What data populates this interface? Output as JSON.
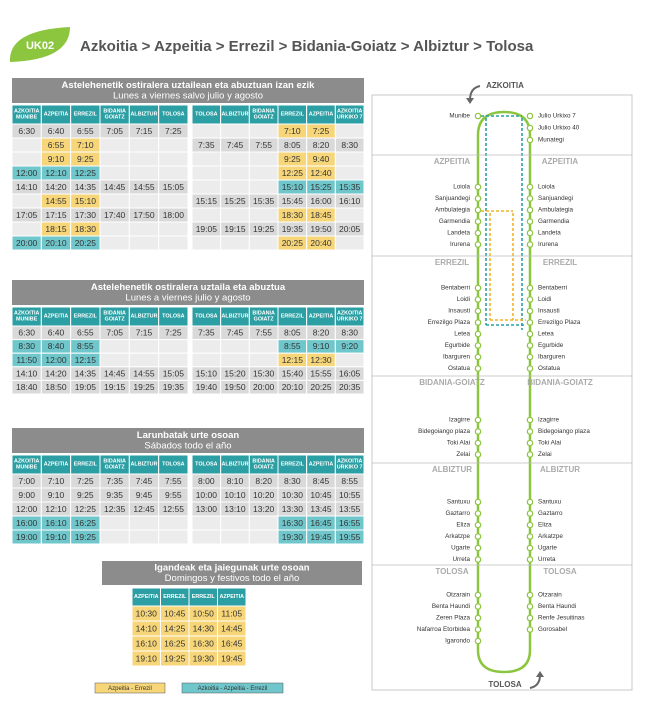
{
  "header": {
    "code": "UK02",
    "title": "Azkoitia > Azpeitia > Errezil > Bidania-Goiatz > Albiztur > Tolosa"
  },
  "colors": {
    "yellow": "#f7d679",
    "teal": "#6fc7cc",
    "header": "#2b9fa3",
    "bar": "#8c8c8c",
    "row": "#d9d9d9",
    "empty": "#ececec",
    "route": "#8cc63f"
  },
  "timetables": [
    {
      "title": "Astelehenetik ostiralera uztailean eta abuztuan izan ezik",
      "subtitle": "Lunes a viernes salvo julio y agosto",
      "left": {
        "headers": [
          [
            "AZKOITIA",
            "MUNIBE"
          ],
          [
            "AZPEITIA"
          ],
          [
            "ERREZIL"
          ],
          [
            "BIDANIA",
            "GOIATZ"
          ],
          [
            "ALBIZTUR"
          ],
          [
            "TOLOSA"
          ]
        ],
        "rows": [
          [
            "6:30",
            "6:40",
            "6:55",
            "7:05",
            "7:15",
            "7:25"
          ],
          [
            null,
            "6:55",
            "7:10",
            null,
            null,
            null
          ],
          [
            null,
            "9:10",
            "9:25",
            null,
            null,
            null
          ],
          [
            "12:00",
            "12:10",
            "12:25",
            null,
            null,
            null
          ],
          [
            "14:10",
            "14:20",
            "14:35",
            "14:45",
            "14:55",
            "15:05"
          ],
          [
            null,
            "14:55",
            "15:10",
            null,
            null,
            null
          ],
          [
            "17:05",
            "17:15",
            "17:30",
            "17:40",
            "17:50",
            "18:00"
          ],
          [
            null,
            "18:15",
            "18:30",
            null,
            null,
            null
          ],
          [
            "20:00",
            "20:10",
            "20:25",
            null,
            null,
            null
          ]
        ],
        "row_colors": [
          null,
          "yellow",
          "yellow",
          "teal",
          null,
          "yellow",
          null,
          "yellow",
          "teal"
        ]
      },
      "right": {
        "headers": [
          [
            "TOLOSA"
          ],
          [
            "ALBIZTUR"
          ],
          [
            "BIDANIA",
            "GOIATZ"
          ],
          [
            "ERREZIL"
          ],
          [
            "AZPEITIA"
          ],
          [
            "AZKOITIA",
            "URKIKO 7"
          ]
        ],
        "rows": [
          [
            null,
            null,
            null,
            "7:10",
            "7:25",
            null
          ],
          [
            "7:35",
            "7:45",
            "7:55",
            "8:05",
            "8:20",
            "8:30"
          ],
          [
            null,
            null,
            null,
            "9:25",
            "9:40",
            null
          ],
          [
            null,
            null,
            null,
            "12:25",
            "12:40",
            null
          ],
          [
            null,
            null,
            null,
            "15:10",
            "15:25",
            "15:35"
          ],
          [
            "15:15",
            "15:25",
            "15:35",
            "15:45",
            "16:00",
            "16:10"
          ],
          [
            null,
            null,
            null,
            "18:30",
            "18:45",
            null
          ],
          [
            "19:05",
            "19:15",
            "19:25",
            "19:35",
            "19:50",
            "20:05"
          ],
          [
            null,
            null,
            null,
            "20:25",
            "20:40",
            null
          ]
        ],
        "row_colors": [
          "yellow",
          null,
          "yellow",
          "yellow",
          "teal",
          null,
          "yellow",
          null,
          "yellow"
        ]
      }
    },
    {
      "title": "Astelehenetik ostiralera uztaila eta abuztua",
      "subtitle": "Lunes a viernes julio y agosto",
      "left": {
        "headers": [
          [
            "AZKOITIA",
            "MUNIBE"
          ],
          [
            "AZPEITIA"
          ],
          [
            "ERREZIL"
          ],
          [
            "BIDANIA",
            "GOIATZ"
          ],
          [
            "ALBIZTUR"
          ],
          [
            "TOLOSA"
          ]
        ],
        "rows": [
          [
            "6:30",
            "6:40",
            "6:55",
            "7:05",
            "7:15",
            "7:25"
          ],
          [
            "8:30",
            "8:40",
            "8:55",
            null,
            null,
            null
          ],
          [
            "11:50",
            "12:00",
            "12:15",
            null,
            null,
            null
          ],
          [
            "14:10",
            "14:20",
            "14:35",
            "14:45",
            "14:55",
            "15:05"
          ],
          [
            "18:40",
            "18:50",
            "19:05",
            "19:15",
            "19:25",
            "19:35"
          ]
        ],
        "row_colors": [
          null,
          "teal",
          "teal",
          null,
          null
        ]
      },
      "right": {
        "headers": [
          [
            "TOLOSA"
          ],
          [
            "ALBIZTUR"
          ],
          [
            "BIDANIA",
            "GOIATZ"
          ],
          [
            "ERREZIL"
          ],
          [
            "AZPEITIA"
          ],
          [
            "AZKOITIA",
            "URKIKO 7"
          ]
        ],
        "rows": [
          [
            "7:35",
            "7:45",
            "7:55",
            "8:05",
            "8:20",
            "8:30"
          ],
          [
            null,
            null,
            null,
            "8:55",
            "9:10",
            "9:20"
          ],
          [
            null,
            null,
            null,
            "12:15",
            "12:30",
            null
          ],
          [
            "15:10",
            "15:20",
            "15:30",
            "15:40",
            "15:55",
            "16:05"
          ],
          [
            "19:40",
            "19:50",
            "20:00",
            "20:10",
            "20:25",
            "20:35"
          ]
        ],
        "row_colors": [
          null,
          "teal",
          "yellow",
          null,
          null
        ]
      }
    },
    {
      "title": "Larunbatak urte osoan",
      "subtitle": "Sábados todo el año",
      "left": {
        "headers": [
          [
            "AZKOITIA",
            "MUNIBE"
          ],
          [
            "AZPEITIA"
          ],
          [
            "ERREZIL"
          ],
          [
            "BIDANIA",
            "GOIATZ"
          ],
          [
            "ALBIZTUR"
          ],
          [
            "TOLOSA"
          ]
        ],
        "rows": [
          [
            "7:00",
            "7:10",
            "7:25",
            "7:35",
            "7:45",
            "7:55"
          ],
          [
            "9:00",
            "9:10",
            "9:25",
            "9:35",
            "9:45",
            "9:55"
          ],
          [
            "12:00",
            "12:10",
            "12:25",
            "12:35",
            "12:45",
            "12:55"
          ],
          [
            "16:00",
            "16:10",
            "16:25",
            null,
            null,
            null
          ],
          [
            "19:00",
            "19:10",
            "19:25",
            null,
            null,
            null
          ]
        ],
        "row_colors": [
          null,
          null,
          null,
          "teal",
          "teal"
        ]
      },
      "right": {
        "headers": [
          [
            "TOLOSA"
          ],
          [
            "ALBIZTUR"
          ],
          [
            "BIDANIA",
            "GOIATZ"
          ],
          [
            "ERREZIL"
          ],
          [
            "AZPEITIA"
          ],
          [
            "AZKOITIA",
            "URKIKO 7"
          ]
        ],
        "rows": [
          [
            "8:00",
            "8:10",
            "8:20",
            "8:30",
            "8:45",
            "8:55"
          ],
          [
            "10:00",
            "10:10",
            "10:20",
            "10:30",
            "10:45",
            "10:55"
          ],
          [
            "13:00",
            "13:10",
            "13:20",
            "13:30",
            "13:45",
            "13:55"
          ],
          [
            null,
            null,
            null,
            "16:30",
            "16:45",
            "16:55"
          ],
          [
            null,
            null,
            null,
            "19:30",
            "19:45",
            "19:55"
          ]
        ],
        "row_colors": [
          null,
          null,
          null,
          "teal",
          "teal"
        ]
      }
    }
  ],
  "sunday": {
    "title": "Igandeak eta jaiegunak urte osoan",
    "subtitle": "Domingos y festivos todo el año",
    "headers": [
      [
        "AZPEITIA"
      ],
      [
        "ERREZIL"
      ],
      [
        "ERREZIL"
      ],
      [
        "AZPEITIA"
      ]
    ],
    "rows": [
      [
        "10:30",
        "10:45",
        "10:50",
        "11:05"
      ],
      [
        "14:10",
        "14:25",
        "14:30",
        "14:45"
      ],
      [
        "16:10",
        "16:25",
        "16:30",
        "16:45"
      ],
      [
        "19:10",
        "19:25",
        "19:30",
        "19:45"
      ]
    ],
    "row_colors": [
      "yellow",
      "yellow",
      "yellow",
      "yellow"
    ]
  },
  "legend": [
    {
      "label": "Azpeitia - Errezil",
      "color": "yellow"
    },
    {
      "label": "Azkoitia - Azpeitia - Errezil",
      "color": "teal"
    }
  ],
  "route": {
    "start": "AZKOITIA",
    "end": "TOLOSA",
    "origin": {
      "left": [
        "Munibe"
      ],
      "right": [
        "Julio Urkixo 7",
        "Julio Urkixo 40",
        "Munategi"
      ]
    },
    "zones": [
      {
        "name": "AZPEITIA",
        "left": [
          "Loiola",
          "Sanjuandegi",
          "Ambulategia",
          "Garmendia",
          "Landeta",
          "Irurena"
        ],
        "right": [
          "Loiola",
          "Sanjuandegi",
          "Ambulategia",
          "Garmendia",
          "Landeta",
          "Irurena"
        ]
      },
      {
        "name": "ERREZIL",
        "left": [
          "Bentaberri",
          "Loidi",
          "Insausti",
          "Errezilgo Plaza",
          "Letea",
          "Egurbide",
          "Ibarguren",
          "Ostatua"
        ],
        "right": [
          "Bentaberri",
          "Loidi",
          "Insausti",
          "Errezilgo Plaza",
          "Letea",
          "Egurbide",
          "Ibarguren",
          "Ostatua"
        ]
      },
      {
        "name": "BIDANIA-GOIATZ",
        "left": [
          "Izagirre",
          "Bidegoiango plaza",
          "Toki Alai",
          "Zelai"
        ],
        "right": [
          "Izagirre",
          "Bidegoiango plaza",
          "Toki Alai",
          "Zelai"
        ]
      },
      {
        "name": "ALBIZTUR",
        "left": [
          "Santuxu",
          "Gaztarro",
          "Eliza",
          "Arkatzpe",
          "Ugarte",
          "Urreta"
        ],
        "right": [
          "Santuxu",
          "Gaztarro",
          "Eliza",
          "Arkatzpe",
          "Ugarte",
          "Urreta"
        ]
      },
      {
        "name": "TOLOSA",
        "left": [
          "Otzarain",
          "Benta Haundi",
          "Zeren Plaza",
          "Nafarroa Etorbidea",
          "Igarondo"
        ],
        "right": [
          "Otzarain",
          "Benta Haundi",
          "Renfe Jesuitinas",
          "Gorosabel"
        ]
      }
    ]
  }
}
